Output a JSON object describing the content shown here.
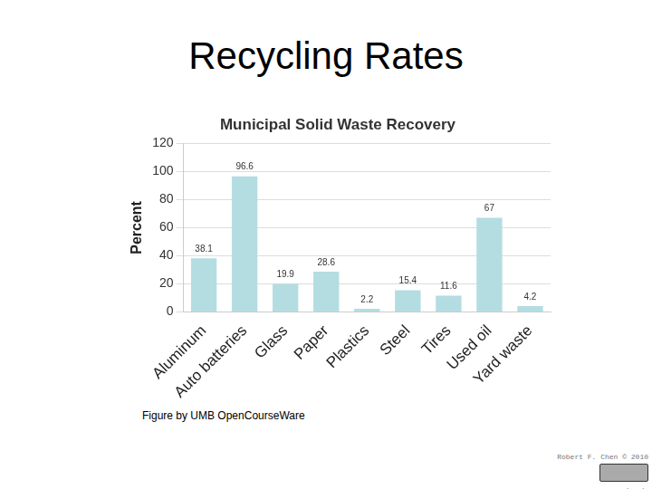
{
  "page": {
    "title": "Recycling Rates",
    "caption": "Figure by UMB OpenCourseWare",
    "credit": "Robert F. Chen © 2010",
    "site": "ocw.umb.edu"
  },
  "chart_data": {
    "type": "bar",
    "title": "Municipal Solid Waste Recovery",
    "y_label": "Percent",
    "categories": [
      "Aluminum",
      "Auto batteries",
      "Glass",
      "Paper",
      "Plastics",
      "Steel",
      "Tires",
      "Used oil",
      "Yard waste"
    ],
    "values": [
      38.1,
      96.6,
      19.9,
      28.6,
      2.2,
      15.4,
      11.6,
      67,
      4.2
    ],
    "color": "#b4dde2",
    "ylim": [
      0,
      120
    ],
    "yticks": [
      0,
      20,
      40,
      60,
      80,
      100,
      120
    ],
    "grid": true,
    "data_labels": true
  }
}
